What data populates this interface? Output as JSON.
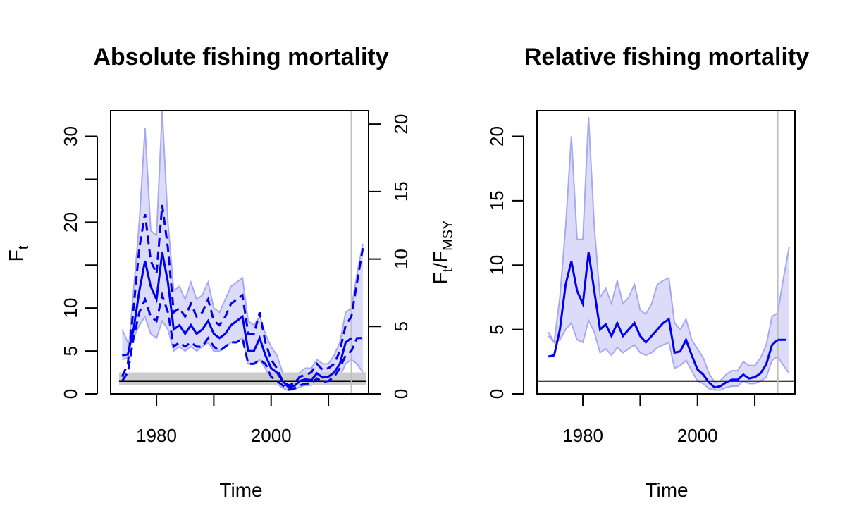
{
  "chart_data": [
    {
      "panel": "left",
      "type": "line",
      "title": "Absolute fishing mortality",
      "xlabel": "Time",
      "ylabel": {
        "main": "F",
        "sub": "t"
      },
      "y2label": {
        "main1": "F",
        "sub1": "t",
        "sep": "/F",
        "sub2": "MSY"
      },
      "xlim": [
        1972,
        2017
      ],
      "ylim": [
        0,
        33
      ],
      "y2lim": [
        0,
        21
      ],
      "x_ticks": [
        1980,
        1990,
        2000,
        2010
      ],
      "x_tick_labels": [
        "1980",
        "2000"
      ],
      "y_ticks": [
        0,
        5,
        10,
        15,
        20,
        25,
        30
      ],
      "y_tick_labels": [
        "0",
        "5",
        "10",
        "20",
        "30"
      ],
      "y2_ticks": [
        0,
        5,
        10,
        15,
        20
      ],
      "y2_tick_labels": [
        "0",
        "5",
        "10",
        "15",
        "20"
      ],
      "vline": 2014,
      "fmsy": {
        "value": 1.5,
        "lower": 1.0,
        "upper": 2.5
      },
      "colors": {
        "main": "#0000ee",
        "band": "#dcdcfa",
        "band_edge": "#a8a8f0",
        "vline": "#bebebe",
        "ref": "#000000",
        "ref_band": "#cccccc"
      },
      "series": [
        {
          "role": "estimate",
          "style": "solid",
          "x": [
            1974,
            1975,
            1976,
            1977,
            1978,
            1979,
            1980,
            1981,
            1982,
            1983,
            1984,
            1985,
            1986,
            1987,
            1988,
            1989,
            1990,
            1991,
            1992,
            1993,
            1994,
            1995,
            1996,
            1997,
            1998,
            1999,
            2000,
            2001,
            2002,
            2003,
            2004,
            2005,
            2006,
            2007,
            2008,
            2009,
            2010,
            2011,
            2012,
            2013,
            2014
          ],
          "y": [
            4.5,
            4.6,
            7.5,
            12.0,
            15.5,
            12.5,
            11.0,
            16.5,
            13.0,
            7.5,
            8.0,
            7.0,
            8.0,
            7.0,
            7.5,
            8.5,
            7.0,
            6.5,
            7.0,
            8.0,
            8.5,
            9.0,
            5.0,
            5.0,
            6.5,
            4.5,
            3.0,
            2.5,
            1.5,
            0.8,
            0.9,
            1.5,
            1.7,
            1.6,
            2.4,
            1.9,
            2.0,
            2.5,
            3.5,
            6.0,
            6.5
          ]
        },
        {
          "role": "lower",
          "style": "solid",
          "x": [
            1974,
            1975,
            1976,
            1977,
            1978,
            1979,
            1980,
            1981,
            1982,
            1983,
            1984,
            1985,
            1986,
            1987,
            1988,
            1989,
            1990,
            1991,
            1992,
            1993,
            1994,
            1995,
            1996,
            1997,
            1998,
            1999,
            2000,
            2001,
            2002,
            2003,
            2004,
            2005,
            2006,
            2007,
            2008,
            2009,
            2010,
            2011,
            2012,
            2013,
            2014,
            2015,
            2016
          ],
          "y": [
            7.5,
            6.0,
            6.5,
            8.0,
            9.0,
            7.0,
            6.5,
            8.5,
            7.5,
            5.0,
            5.5,
            5.0,
            5.5,
            5.0,
            5.5,
            6.0,
            5.0,
            5.0,
            5.5,
            6.0,
            6.0,
            6.5,
            3.5,
            3.5,
            4.0,
            3.0,
            1.5,
            1.2,
            0.7,
            0.4,
            0.5,
            0.8,
            1.0,
            1.0,
            1.5,
            1.2,
            1.3,
            1.5,
            2.0,
            3.5,
            4.0,
            3.5,
            2.5
          ]
        },
        {
          "role": "upper",
          "style": "solid",
          "x": [
            1974,
            1975,
            1976,
            1977,
            1978,
            1979,
            1980,
            1981,
            1982,
            1983,
            1984,
            1985,
            1986,
            1987,
            1988,
            1989,
            1990,
            1991,
            1992,
            1993,
            1994,
            1995,
            1996,
            1997,
            1998,
            1999,
            2000,
            2001,
            2002,
            2003,
            2004,
            2005,
            2006,
            2007,
            2008,
            2009,
            2010,
            2011,
            2012,
            2013,
            2014,
            2015,
            2016
          ],
          "y": [
            4.0,
            4.2,
            12.0,
            20.0,
            31.0,
            19.0,
            18.5,
            33.0,
            20.0,
            12.0,
            12.5,
            11.0,
            13.0,
            11.0,
            11.5,
            13.0,
            10.0,
            9.5,
            11.0,
            12.5,
            13.0,
            13.5,
            8.5,
            8.0,
            9.0,
            7.0,
            5.5,
            4.5,
            2.5,
            1.5,
            1.5,
            2.5,
            3.0,
            3.0,
            4.0,
            3.5,
            3.5,
            4.5,
            6.0,
            9.5,
            10.0,
            14.0,
            17.5
          ]
        },
        {
          "role": "estimate_relative_ci_lower",
          "style": "dashed",
          "x": [
            1974,
            1975,
            1976,
            1977,
            1978,
            1979,
            1980,
            1981,
            1982,
            1983,
            1984,
            1985,
            1986,
            1987,
            1988,
            1989,
            1990,
            1991,
            1992,
            1993,
            1994,
            1995,
            1996,
            1997,
            1998,
            1999,
            2000,
            2001,
            2002,
            2003,
            2004,
            2005,
            2006,
            2007,
            2008,
            2009,
            2010,
            2011,
            2012,
            2013,
            2014,
            2015,
            2016
          ],
          "y": [
            1.5,
            2.5,
            6.5,
            9.5,
            11.0,
            9.0,
            8.5,
            11.5,
            9.5,
            5.5,
            6.0,
            5.5,
            6.0,
            5.5,
            5.5,
            6.5,
            5.5,
            5.0,
            5.5,
            6.0,
            6.0,
            6.5,
            3.5,
            3.5,
            4.0,
            3.5,
            2.0,
            1.5,
            1.0,
            0.5,
            0.6,
            1.0,
            1.2,
            1.2,
            1.8,
            1.4,
            1.5,
            2.0,
            3.0,
            4.5,
            5.0,
            6.5,
            6.5
          ]
        },
        {
          "role": "estimate_relative_ci_upper",
          "style": "dashed",
          "x": [
            1974,
            1975,
            1976,
            1977,
            1978,
            1979,
            1980,
            1981,
            1982,
            1983,
            1984,
            1985,
            1986,
            1987,
            1988,
            1989,
            1990,
            1991,
            1992,
            1993,
            1994,
            1995,
            1996,
            1997,
            1998,
            1999,
            2000,
            2001,
            2002,
            2003,
            2004,
            2005,
            2006,
            2007,
            2008,
            2009,
            2010,
            2011,
            2012,
            2013,
            2014,
            2015,
            2016
          ],
          "y": [
            2.0,
            3.5,
            10.0,
            17.0,
            21.0,
            15.5,
            14.0,
            22.0,
            17.0,
            9.5,
            10.0,
            9.0,
            10.5,
            9.0,
            9.5,
            11.0,
            8.5,
            8.0,
            9.0,
            10.5,
            11.0,
            11.5,
            7.0,
            7.0,
            9.5,
            6.0,
            4.0,
            3.0,
            1.5,
            1.0,
            1.2,
            2.0,
            2.2,
            2.5,
            3.5,
            2.8,
            3.0,
            3.5,
            5.0,
            8.0,
            9.0,
            13.0,
            17.0
          ]
        }
      ]
    },
    {
      "panel": "right",
      "type": "line",
      "title": "Relative fishing mortality",
      "xlabel": "Time",
      "xlim": [
        1972,
        2017
      ],
      "ylim": [
        0,
        22
      ],
      "x_ticks": [
        1980,
        1990,
        2000,
        2010
      ],
      "x_tick_labels": [
        "1980",
        "2000"
      ],
      "y_ticks": [
        0,
        5,
        10,
        15,
        20
      ],
      "y_tick_labels": [
        "0",
        "5",
        "10",
        "15",
        "20"
      ],
      "vline": 2014,
      "hline": 1,
      "colors": {
        "main": "#0000ee",
        "band": "#dcdcfa",
        "band_edge": "#a8a8f0",
        "vline": "#bebebe",
        "ref": "#000000"
      },
      "series": [
        {
          "role": "estimate",
          "style": "solid",
          "x": [
            1974,
            1975,
            1976,
            1977,
            1978,
            1979,
            1980,
            1981,
            1982,
            1983,
            1984,
            1985,
            1986,
            1987,
            1988,
            1989,
            1990,
            1991,
            1992,
            1993,
            1994,
            1995,
            1996,
            1997,
            1998,
            1999,
            2000,
            2001,
            2002,
            2003,
            2004,
            2005,
            2006,
            2007,
            2008,
            2009,
            2010,
            2011,
            2012,
            2013,
            2014
          ],
          "y": [
            2.9,
            3.0,
            5.0,
            8.5,
            10.3,
            8.0,
            7.0,
            11.0,
            8.0,
            5.0,
            5.4,
            4.5,
            5.5,
            4.5,
            5.0,
            5.5,
            4.5,
            4.0,
            4.5,
            5.0,
            5.5,
            5.8,
            3.2,
            3.3,
            4.2,
            3.0,
            1.9,
            1.5,
            0.9,
            0.5,
            0.6,
            0.9,
            1.1,
            1.1,
            1.5,
            1.2,
            1.3,
            1.6,
            2.3,
            3.8,
            4.2
          ]
        },
        {
          "role": "estimate_projection",
          "style": "dashed",
          "x": [
            2014,
            2015,
            2016
          ],
          "y": [
            4.2,
            4.2,
            4.2
          ]
        },
        {
          "role": "lower",
          "style": "solid",
          "x": [
            1974,
            1975,
            1976,
            1977,
            1978,
            1979,
            1980,
            1981,
            1982,
            1983,
            1984,
            1985,
            1986,
            1987,
            1988,
            1989,
            1990,
            1991,
            1992,
            1993,
            1994,
            1995,
            1996,
            1997,
            1998,
            1999,
            2000,
            2001,
            2002,
            2003,
            2004,
            2005,
            2006,
            2007,
            2008,
            2009,
            2010,
            2011,
            2012,
            2013,
            2014,
            2015,
            2016
          ],
          "y": [
            4.8,
            4.0,
            4.2,
            5.0,
            5.5,
            4.2,
            4.0,
            5.7,
            4.8,
            3.2,
            3.5,
            3.0,
            3.6,
            3.2,
            3.5,
            3.8,
            3.2,
            3.0,
            3.2,
            3.6,
            3.8,
            4.0,
            2.0,
            2.2,
            2.6,
            1.8,
            1.0,
            0.8,
            0.4,
            0.3,
            0.3,
            0.5,
            0.6,
            0.6,
            1.0,
            0.8,
            0.8,
            1.0,
            1.3,
            2.6,
            2.9,
            2.2,
            1.6
          ]
        },
        {
          "role": "upper",
          "style": "solid",
          "x": [
            1974,
            1975,
            1976,
            1977,
            1978,
            1979,
            1980,
            1981,
            1982,
            1983,
            1984,
            1985,
            1986,
            1987,
            1988,
            1989,
            1990,
            1991,
            1992,
            1993,
            1994,
            1995,
            1996,
            1997,
            1998,
            1999,
            2000,
            2001,
            2002,
            2003,
            2004,
            2005,
            2006,
            2007,
            2008,
            2009,
            2010,
            2011,
            2012,
            2013,
            2014,
            2015,
            2016
          ],
          "y": [
            4.5,
            4.0,
            7.5,
            13.0,
            20.0,
            12.0,
            12.0,
            21.5,
            13.0,
            7.5,
            8.2,
            7.0,
            8.8,
            7.0,
            7.5,
            8.5,
            6.5,
            6.2,
            7.0,
            8.5,
            8.8,
            9.0,
            5.5,
            5.0,
            5.8,
            4.2,
            3.5,
            2.8,
            1.6,
            0.9,
            1.0,
            1.5,
            1.8,
            1.8,
            2.5,
            2.2,
            2.2,
            2.8,
            3.8,
            6.0,
            6.3,
            9.0,
            11.4
          ]
        }
      ]
    }
  ]
}
